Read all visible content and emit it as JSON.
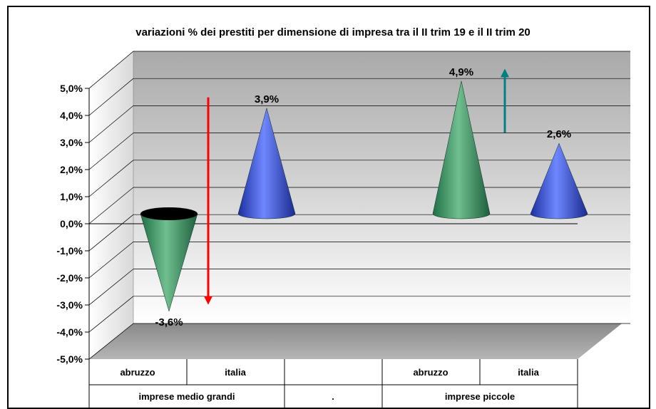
{
  "chart_data": {
    "type": "bar",
    "title": "variazioni % dei prestiti per dimensione di impresa tra il II trim 19 e il II trim 20",
    "y_tick_labels": [
      "-5,0%",
      "-4,0%",
      "-3,0%",
      "-2,0%",
      "-1,0%",
      "0,0%",
      "1,0%",
      "2,0%",
      "3,0%",
      "4,0%",
      "5,0%"
    ],
    "ylim": [
      -5,
      5
    ],
    "grid": true,
    "categories": [
      "abruzzo",
      "italia",
      "",
      "abruzzo",
      "italia"
    ],
    "groups": [
      "imprese medio grandi",
      ".",
      "imprese piccole"
    ],
    "values": [
      -3.6,
      3.9,
      null,
      4.9,
      2.6
    ],
    "data_labels": [
      "-3,6%",
      "3,9%",
      "",
      "4,9%",
      "2,6%"
    ],
    "series_colors": [
      "#2e8b57",
      "#3355dd",
      null,
      "#2e8b57",
      "#3355dd"
    ],
    "annotations": [
      {
        "kind": "arrow-down",
        "color": "#ff0000",
        "from": 4.3,
        "to": -3.2
      },
      {
        "kind": "arrow-up",
        "color": "#008080",
        "from": 3.0,
        "to": 5.2
      }
    ]
  }
}
